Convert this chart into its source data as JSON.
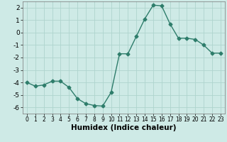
{
  "x": [
    0,
    1,
    2,
    3,
    4,
    5,
    6,
    7,
    8,
    9,
    10,
    11,
    12,
    13,
    14,
    15,
    16,
    17,
    18,
    19,
    20,
    21,
    22,
    23
  ],
  "y": [
    -4.0,
    -4.3,
    -4.2,
    -3.9,
    -3.9,
    -4.4,
    -5.3,
    -5.7,
    -5.85,
    -5.9,
    -4.8,
    -1.7,
    -1.7,
    -0.3,
    1.1,
    2.2,
    2.15,
    0.7,
    -0.45,
    -0.45,
    -0.55,
    -1.0,
    -1.65,
    -1.65
  ],
  "line_color": "#2e7d6b",
  "marker": "D",
  "marker_size": 2.5,
  "bg_color": "#ceeae6",
  "grid_color": "#aed4ce",
  "xlabel": "Humidex (Indice chaleur)",
  "xlim_min": -0.5,
  "xlim_max": 23.5,
  "ylim_min": -6.5,
  "ylim_max": 2.5,
  "yticks": [
    -6,
    -5,
    -4,
    -3,
    -2,
    -1,
    0,
    1,
    2
  ],
  "xticks": [
    0,
    1,
    2,
    3,
    4,
    5,
    6,
    7,
    8,
    9,
    10,
    11,
    12,
    13,
    14,
    15,
    16,
    17,
    18,
    19,
    20,
    21,
    22,
    23
  ],
  "xtick_fontsize": 5.5,
  "ytick_fontsize": 6.5,
  "xlabel_fontsize": 7.5,
  "line_width": 1.0
}
